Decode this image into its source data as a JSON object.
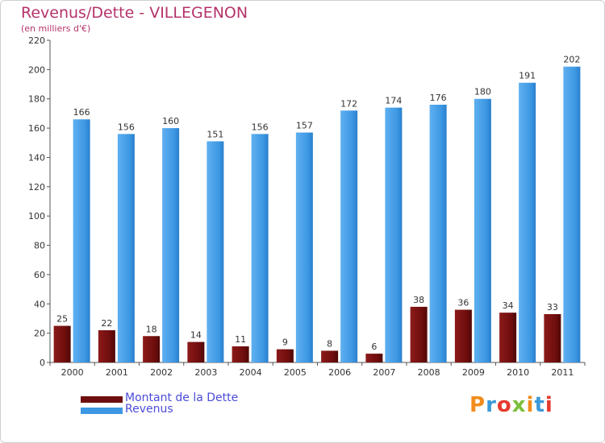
{
  "title": "Revenus/Dette - VILLEGENON",
  "subtitle": "(en milliers d'€)",
  "logo": {
    "text": "Proxiti",
    "colors": [
      "#f28c1a",
      "#3a9ad9",
      "#e63a2e",
      "#7bbf3a"
    ]
  },
  "colors": {
    "dette": "#7a0f0f",
    "revenus": "#3d97e3",
    "title": "#b5336b",
    "legend_text": "#4b4bd8"
  },
  "chart_data": {
    "type": "bar",
    "title": "Revenus/Dette - VILLEGENON",
    "ylabel": "(en milliers d'€)",
    "xlabel": "",
    "categories": [
      "2000",
      "2001",
      "2002",
      "2003",
      "2004",
      "2005",
      "2006",
      "2007",
      "2008",
      "2009",
      "2010",
      "2011"
    ],
    "ylim": [
      0,
      220
    ],
    "yticks": [
      0,
      20,
      40,
      60,
      80,
      100,
      120,
      140,
      160,
      180,
      200,
      220
    ],
    "grid": false,
    "legend_position": "bottom-left",
    "series": [
      {
        "name": "Montant de la Dette",
        "color": "#7a0f0f",
        "values": [
          25,
          22,
          18,
          14,
          11,
          9,
          8,
          6,
          38,
          36,
          34,
          33
        ]
      },
      {
        "name": "Revenus",
        "color": "#3d97e3",
        "values": [
          166,
          156,
          160,
          151,
          156,
          157,
          172,
          174,
          176,
          180,
          191,
          202
        ]
      }
    ]
  }
}
